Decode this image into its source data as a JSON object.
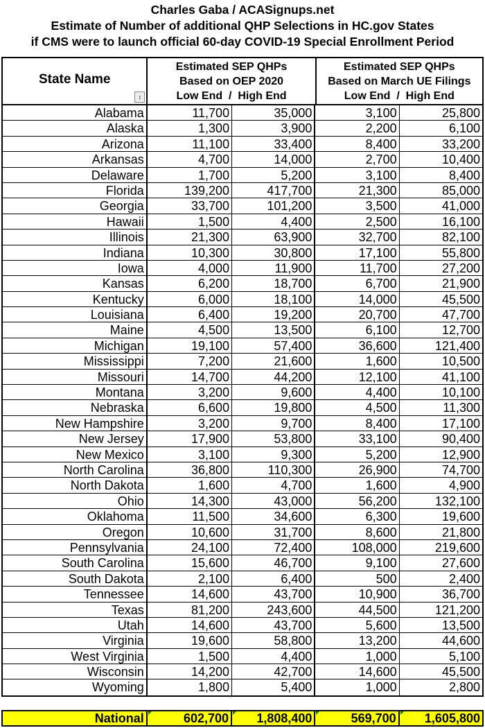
{
  "title": {
    "line1": "Charles Gaba / ACASignups.net",
    "line2": "Estimate of Number of additional QHP Selections in HC.gov States",
    "line3": "if CMS were to launch official 60-day COVID-19 Special Enrollment Period"
  },
  "header": {
    "state": "State Name",
    "group1": {
      "line1": "Estimated SEP QHPs",
      "line2": "Based on OEP 2020",
      "line3": "Low End  /  High End"
    },
    "group2": {
      "line1": "Estimated SEP QHPs",
      "line2": "Based on March UE Filings",
      "line3": "Low End  /  High End"
    },
    "sort_icon": "sort-up-down-icon"
  },
  "rows": [
    [
      "Alabama",
      "11,700",
      "35,000",
      "3,100",
      "25,800"
    ],
    [
      "Alaska",
      "1,300",
      "3,900",
      "2,200",
      "6,100"
    ],
    [
      "Arizona",
      "11,100",
      "33,400",
      "8,400",
      "33,200"
    ],
    [
      "Arkansas",
      "4,700",
      "14,000",
      "2,700",
      "10,400"
    ],
    [
      "Delaware",
      "1,700",
      "5,200",
      "3,100",
      "8,400"
    ],
    [
      "Florida",
      "139,200",
      "417,700",
      "21,300",
      "85,000"
    ],
    [
      "Georgia",
      "33,700",
      "101,200",
      "3,500",
      "41,000"
    ],
    [
      "Hawaii",
      "1,500",
      "4,400",
      "2,500",
      "16,100"
    ],
    [
      "Illinois",
      "21,300",
      "63,900",
      "32,700",
      "82,100"
    ],
    [
      "Indiana",
      "10,300",
      "30,800",
      "17,100",
      "55,800"
    ],
    [
      "Iowa",
      "4,000",
      "11,900",
      "11,700",
      "27,200"
    ],
    [
      "Kansas",
      "6,200",
      "18,700",
      "6,700",
      "21,900"
    ],
    [
      "Kentucky",
      "6,000",
      "18,100",
      "14,000",
      "45,500"
    ],
    [
      "Louisiana",
      "6,400",
      "19,200",
      "20,700",
      "47,700"
    ],
    [
      "Maine",
      "4,500",
      "13,500",
      "6,100",
      "12,700"
    ],
    [
      "Michigan",
      "19,100",
      "57,400",
      "36,600",
      "121,400"
    ],
    [
      "Mississippi",
      "7,200",
      "21,600",
      "1,600",
      "10,500"
    ],
    [
      "Missouri",
      "14,700",
      "44,200",
      "12,100",
      "41,100"
    ],
    [
      "Montana",
      "3,200",
      "9,600",
      "4,400",
      "10,100"
    ],
    [
      "Nebraska",
      "6,600",
      "19,800",
      "4,500",
      "11,300"
    ],
    [
      "New Hampshire",
      "3,200",
      "9,700",
      "8,400",
      "17,100"
    ],
    [
      "New Jersey",
      "17,900",
      "53,800",
      "33,100",
      "90,400"
    ],
    [
      "New Mexico",
      "3,100",
      "9,300",
      "5,200",
      "12,900"
    ],
    [
      "North Carolina",
      "36,800",
      "110,300",
      "26,900",
      "74,700"
    ],
    [
      "North Dakota",
      "1,600",
      "4,700",
      "1,600",
      "4,900"
    ],
    [
      "Ohio",
      "14,300",
      "43,000",
      "56,200",
      "132,100"
    ],
    [
      "Oklahoma",
      "11,500",
      "34,600",
      "6,300",
      "19,600"
    ],
    [
      "Oregon",
      "10,600",
      "31,700",
      "8,600",
      "21,800"
    ],
    [
      "Pennsylvania",
      "24,100",
      "72,400",
      "108,000",
      "219,600"
    ],
    [
      "South Carolina",
      "15,600",
      "46,700",
      "9,100",
      "27,600"
    ],
    [
      "South Dakota",
      "2,100",
      "6,400",
      "500",
      "2,400"
    ],
    [
      "Tennessee",
      "14,600",
      "43,700",
      "10,900",
      "36,700"
    ],
    [
      "Texas",
      "81,200",
      "243,600",
      "44,500",
      "121,200"
    ],
    [
      "Utah",
      "14,600",
      "43,700",
      "5,600",
      "13,500"
    ],
    [
      "Virginia",
      "19,600",
      "58,800",
      "13,200",
      "44,600"
    ],
    [
      "West Virginia",
      "1,500",
      "4,400",
      "1,000",
      "5,100"
    ],
    [
      "Wisconsin",
      "14,200",
      "42,700",
      "14,600",
      "45,500"
    ],
    [
      "Wyoming",
      "1,800",
      "5,400",
      "1,000",
      "2,800"
    ]
  ],
  "national": [
    "National",
    "602,700",
    "1,808,400",
    "569,700",
    "1,605,800"
  ],
  "colors": {
    "national_highlight": "#ffff00",
    "error_indicator": "#1a7a1a"
  }
}
